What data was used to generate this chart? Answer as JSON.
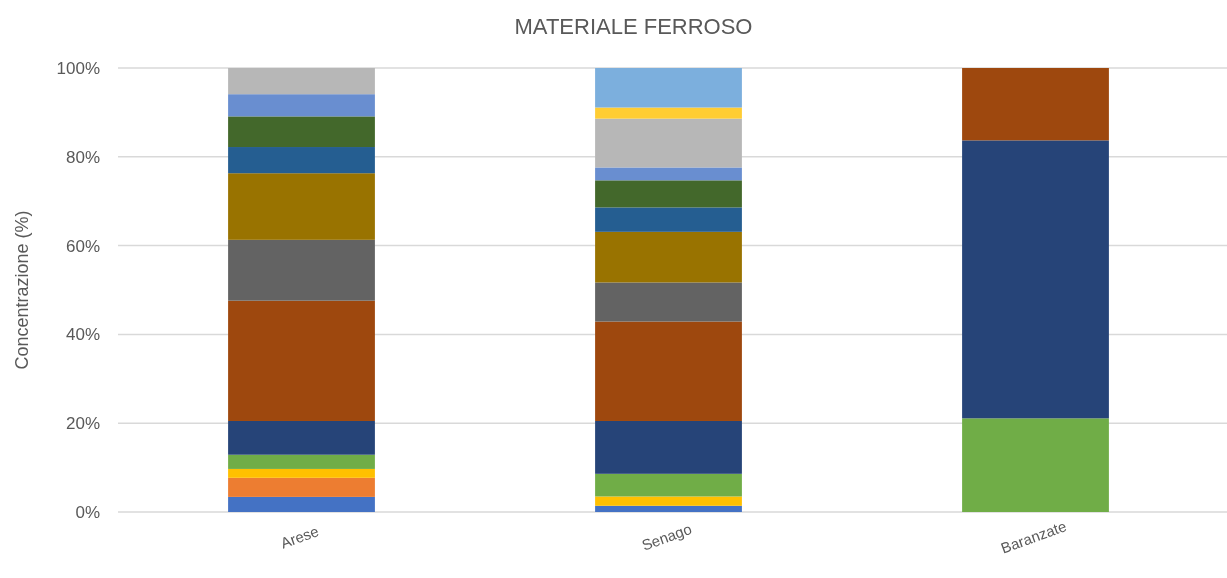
{
  "chart_data": {
    "type": "bar",
    "title": "MATERIALE FERROSO",
    "ylabel": "Concentrazione (%)",
    "categories": [
      "Arese",
      "Senago",
      "Baranzate"
    ],
    "stacked": true,
    "grid": "y",
    "ylim": [
      0,
      100
    ],
    "yticks": [
      {
        "value": 0,
        "label": "0%"
      },
      {
        "value": 20,
        "label": "20%"
      },
      {
        "value": 40,
        "label": "40%"
      },
      {
        "value": 60,
        "label": "60%"
      },
      {
        "value": 80,
        "label": "80%"
      },
      {
        "value": 100,
        "label": "100%"
      }
    ],
    "series": [
      {
        "color": "#4472c4",
        "values": [
          3.4,
          1.4,
          null
        ]
      },
      {
        "color": "#ed7d31",
        "values": [
          4.3,
          null,
          null
        ]
      },
      {
        "color": "#ffc000",
        "values": [
          2.0,
          2.1,
          null
        ]
      },
      {
        "color": "#70ad47",
        "values": [
          3.2,
          5.1,
          21.1
        ]
      },
      {
        "color": "#264478",
        "values": [
          7.6,
          11.9,
          62.6
        ]
      },
      {
        "color": "#9e480e",
        "values": [
          27.1,
          22.4,
          16.3
        ]
      },
      {
        "color": "#636363",
        "values": [
          13.7,
          8.8,
          null
        ]
      },
      {
        "color": "#997300",
        "values": [
          15.0,
          11.4,
          null
        ]
      },
      {
        "color": "#255e91",
        "values": [
          5.9,
          5.5,
          null
        ]
      },
      {
        "color": "#43682b",
        "values": [
          6.9,
          6.1,
          null
        ]
      },
      {
        "color": "#698ed0",
        "values": [
          5.0,
          2.9,
          null
        ]
      },
      {
        "color": "#b7b7b7",
        "values": [
          5.9,
          11.0,
          null
        ]
      },
      {
        "color": "#ffcd33",
        "values": [
          null,
          2.5,
          null
        ]
      },
      {
        "color": "#7cafdd",
        "values": [
          null,
          8.9,
          null
        ]
      }
    ]
  }
}
